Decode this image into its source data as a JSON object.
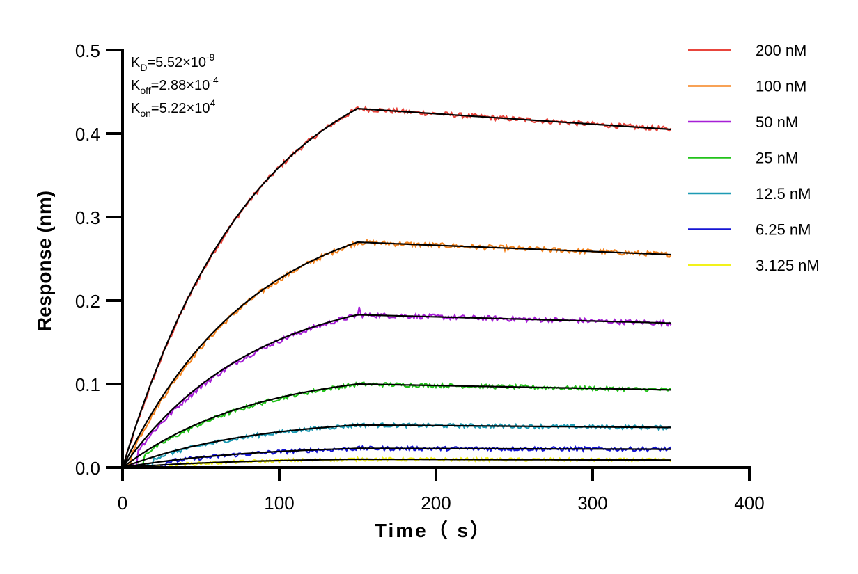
{
  "chart_data": {
    "type": "line",
    "xlabel": "Time（ s）",
    "ylabel": "Response (nm)",
    "xlim": [
      0,
      400
    ],
    "ylim": [
      0,
      0.5
    ],
    "x_ticks": [
      "0",
      "100",
      "200",
      "300",
      "400"
    ],
    "y_ticks": [
      "0.0",
      "0.1",
      "0.2",
      "0.3",
      "0.4",
      "0.5"
    ],
    "grid": false,
    "legend_position": "right",
    "association_end_s": 150,
    "run_end_s": 350,
    "kinetics": [
      {
        "label": "K",
        "sub": "D",
        "mantissa": "=5.52×10",
        "exp": "-9"
      },
      {
        "label": "K",
        "sub": "off",
        "mantissa": "=2.88×10",
        "exp": "-4"
      },
      {
        "label": "K",
        "sub": "on",
        "mantissa": "=5.22×10",
        "exp": "4"
      }
    ],
    "fit_color": "#000000",
    "series": [
      {
        "name": "200 nM",
        "color": "#E8453C",
        "plateau": 0.43,
        "end": 0.405,
        "lag": 2,
        "noise": 0.003
      },
      {
        "name": "100 nM",
        "color": "#F5841F",
        "plateau": 0.27,
        "end": 0.255,
        "lag": 6,
        "noise": 0.003
      },
      {
        "name": "50 nM",
        "color": "#A61FD6",
        "plateau": 0.183,
        "end": 0.173,
        "lag": 10,
        "noise": 0.003
      },
      {
        "name": "25 nM",
        "color": "#22C21A",
        "plateau": 0.1,
        "end": 0.093,
        "lag": 14,
        "noise": 0.0025
      },
      {
        "name": "12.5 nM",
        "color": "#1D9BB4",
        "plateau": 0.051,
        "end": 0.048,
        "lag": 20,
        "noise": 0.0025
      },
      {
        "name": "6.25 nM",
        "color": "#1414D4",
        "plateau": 0.023,
        "end": 0.022,
        "lag": 28,
        "noise": 0.0025
      },
      {
        "name": "3.125 nM",
        "color": "#F2F21A",
        "plateau": 0.01,
        "end": 0.009,
        "lag": 34,
        "noise": 0.002
      }
    ]
  }
}
